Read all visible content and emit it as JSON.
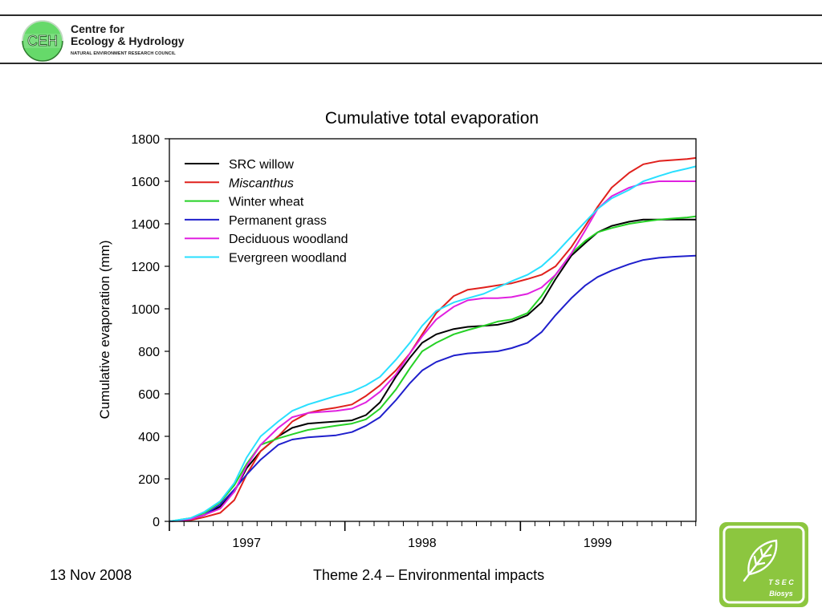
{
  "header": {
    "logo_badge": "CEH",
    "org_line1": "Centre for",
    "org_line2": "Ecology & Hydrology",
    "org_line3": "NATURAL ENVIRONMENT RESEARCH COUNCIL"
  },
  "footer": {
    "date": "13 Nov 2008",
    "theme": "Theme 2.4 – Environmental impacts"
  },
  "tsec_logo": {
    "line1": "T S E C",
    "line2": "Biosys"
  },
  "colors": {
    "ceh_green": "#66d96a",
    "tsec_green": "#8cc63f"
  },
  "chart_data": {
    "type": "line",
    "title": "Cumulative total evaporation",
    "xlabel": "",
    "ylabel": "Cumulative evaporation (mm)",
    "xlim": [
      1996.63,
      1999.63
    ],
    "ylim": [
      0,
      1800
    ],
    "yticks": [
      0,
      200,
      400,
      600,
      800,
      1000,
      1200,
      1400,
      1600,
      1800
    ],
    "xtick_labels": [
      {
        "value": 1997.07,
        "label": "1997"
      },
      {
        "value": 1998.07,
        "label": "1998"
      },
      {
        "value": 1999.07,
        "label": "1999"
      }
    ],
    "x_major_ticks": [
      1996.63,
      1997.63,
      1998.63
    ],
    "x_minor_step": 0.0833,
    "legend_position": "top-left",
    "grid": false,
    "x": [
      1996.63,
      1996.75,
      1996.83,
      1996.92,
      1997.0,
      1997.07,
      1997.15,
      1997.25,
      1997.33,
      1997.42,
      1997.5,
      1997.58,
      1997.67,
      1997.75,
      1997.83,
      1997.92,
      1998.0,
      1998.07,
      1998.15,
      1998.25,
      1998.33,
      1998.42,
      1998.5,
      1998.58,
      1998.67,
      1998.75,
      1998.83,
      1998.92,
      1999.0,
      1999.07,
      1999.15,
      1999.25,
      1999.33,
      1999.42,
      1999.5,
      1999.58,
      1999.63
    ],
    "series": [
      {
        "name": "SRC willow",
        "italic": false,
        "color": "#000000",
        "values": [
          0,
          10,
          30,
          70,
          140,
          250,
          330,
          400,
          440,
          460,
          465,
          470,
          475,
          500,
          560,
          680,
          770,
          840,
          880,
          905,
          915,
          920,
          925,
          940,
          970,
          1030,
          1140,
          1250,
          1310,
          1360,
          1390,
          1410,
          1420,
          1420,
          1420,
          1420,
          1420
        ]
      },
      {
        "name": "Miscanthus",
        "italic": false,
        "color": "#e0201c",
        "values": [
          0,
          5,
          20,
          40,
          100,
          220,
          330,
          400,
          470,
          510,
          525,
          535,
          550,
          590,
          640,
          710,
          790,
          880,
          980,
          1060,
          1090,
          1100,
          1110,
          1120,
          1140,
          1160,
          1200,
          1290,
          1390,
          1480,
          1570,
          1640,
          1680,
          1695,
          1700,
          1705,
          1710
        ]
      },
      {
        "name": "Winter wheat",
        "italic": false,
        "color": "#25d125",
        "values": [
          0,
          15,
          40,
          90,
          170,
          270,
          360,
          390,
          410,
          430,
          440,
          450,
          460,
          480,
          530,
          620,
          720,
          800,
          840,
          880,
          900,
          920,
          940,
          950,
          980,
          1060,
          1160,
          1260,
          1320,
          1360,
          1380,
          1400,
          1410,
          1420,
          1425,
          1430,
          1435
        ]
      },
      {
        "name": "Permanent grass",
        "italic": false,
        "color": "#1f1fcc",
        "values": [
          0,
          10,
          30,
          80,
          150,
          220,
          290,
          360,
          385,
          395,
          400,
          405,
          420,
          450,
          490,
          570,
          650,
          710,
          750,
          780,
          790,
          795,
          800,
          815,
          840,
          890,
          970,
          1050,
          1110,
          1150,
          1180,
          1210,
          1230,
          1240,
          1245,
          1248,
          1250
        ]
      },
      {
        "name": "Deciduous woodland",
        "italic": false,
        "color": "#e020e0",
        "values": [
          0,
          10,
          30,
          60,
          140,
          260,
          360,
          440,
          490,
          510,
          515,
          520,
          530,
          560,
          610,
          690,
          790,
          870,
          950,
          1010,
          1040,
          1050,
          1050,
          1055,
          1070,
          1100,
          1160,
          1260,
          1370,
          1470,
          1530,
          1570,
          1590,
          1600,
          1600,
          1600,
          1600
        ]
      },
      {
        "name": "Evergreen woodland",
        "italic": false,
        "color": "#29dfff",
        "values": [
          0,
          15,
          45,
          95,
          180,
          300,
          400,
          470,
          520,
          550,
          570,
          590,
          610,
          640,
          680,
          760,
          840,
          920,
          990,
          1030,
          1050,
          1070,
          1100,
          1130,
          1160,
          1200,
          1260,
          1340,
          1410,
          1470,
          1520,
          1560,
          1600,
          1625,
          1645,
          1660,
          1670
        ]
      }
    ]
  }
}
